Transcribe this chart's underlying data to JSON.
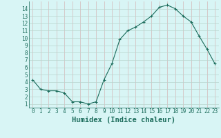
{
  "x": [
    0,
    1,
    2,
    3,
    4,
    5,
    6,
    7,
    8,
    9,
    10,
    11,
    12,
    13,
    14,
    15,
    16,
    17,
    18,
    19,
    20,
    21,
    22,
    23
  ],
  "y": [
    4.3,
    3.0,
    2.8,
    2.8,
    2.5,
    1.3,
    1.3,
    1.0,
    1.3,
    4.3,
    6.5,
    9.8,
    11.0,
    11.5,
    12.2,
    13.0,
    14.2,
    14.5,
    14.0,
    13.0,
    12.2,
    10.3,
    8.5,
    6.5
  ],
  "xlabel": "Humidex (Indice chaleur)",
  "xlim": [
    -0.5,
    23.5
  ],
  "ylim": [
    0.5,
    15
  ],
  "yticks": [
    1,
    2,
    3,
    4,
    5,
    6,
    7,
    8,
    9,
    10,
    11,
    12,
    13,
    14
  ],
  "xticks": [
    0,
    1,
    2,
    3,
    4,
    5,
    6,
    7,
    8,
    9,
    10,
    11,
    12,
    13,
    14,
    15,
    16,
    17,
    18,
    19,
    20,
    21,
    22,
    23
  ],
  "line_color": "#1a6b5a",
  "marker_color": "#1a6b5a",
  "bg_color": "#d8f5f5",
  "vgrid_color": "#d4b8b8",
  "hgrid_color": "#b8d4ce",
  "xlabel_color": "#1a6b5a",
  "tick_color": "#1a6b5a",
  "spine_color": "#1a6b5a",
  "tick_fontsize": 5.5,
  "xlabel_fontsize": 7.5
}
